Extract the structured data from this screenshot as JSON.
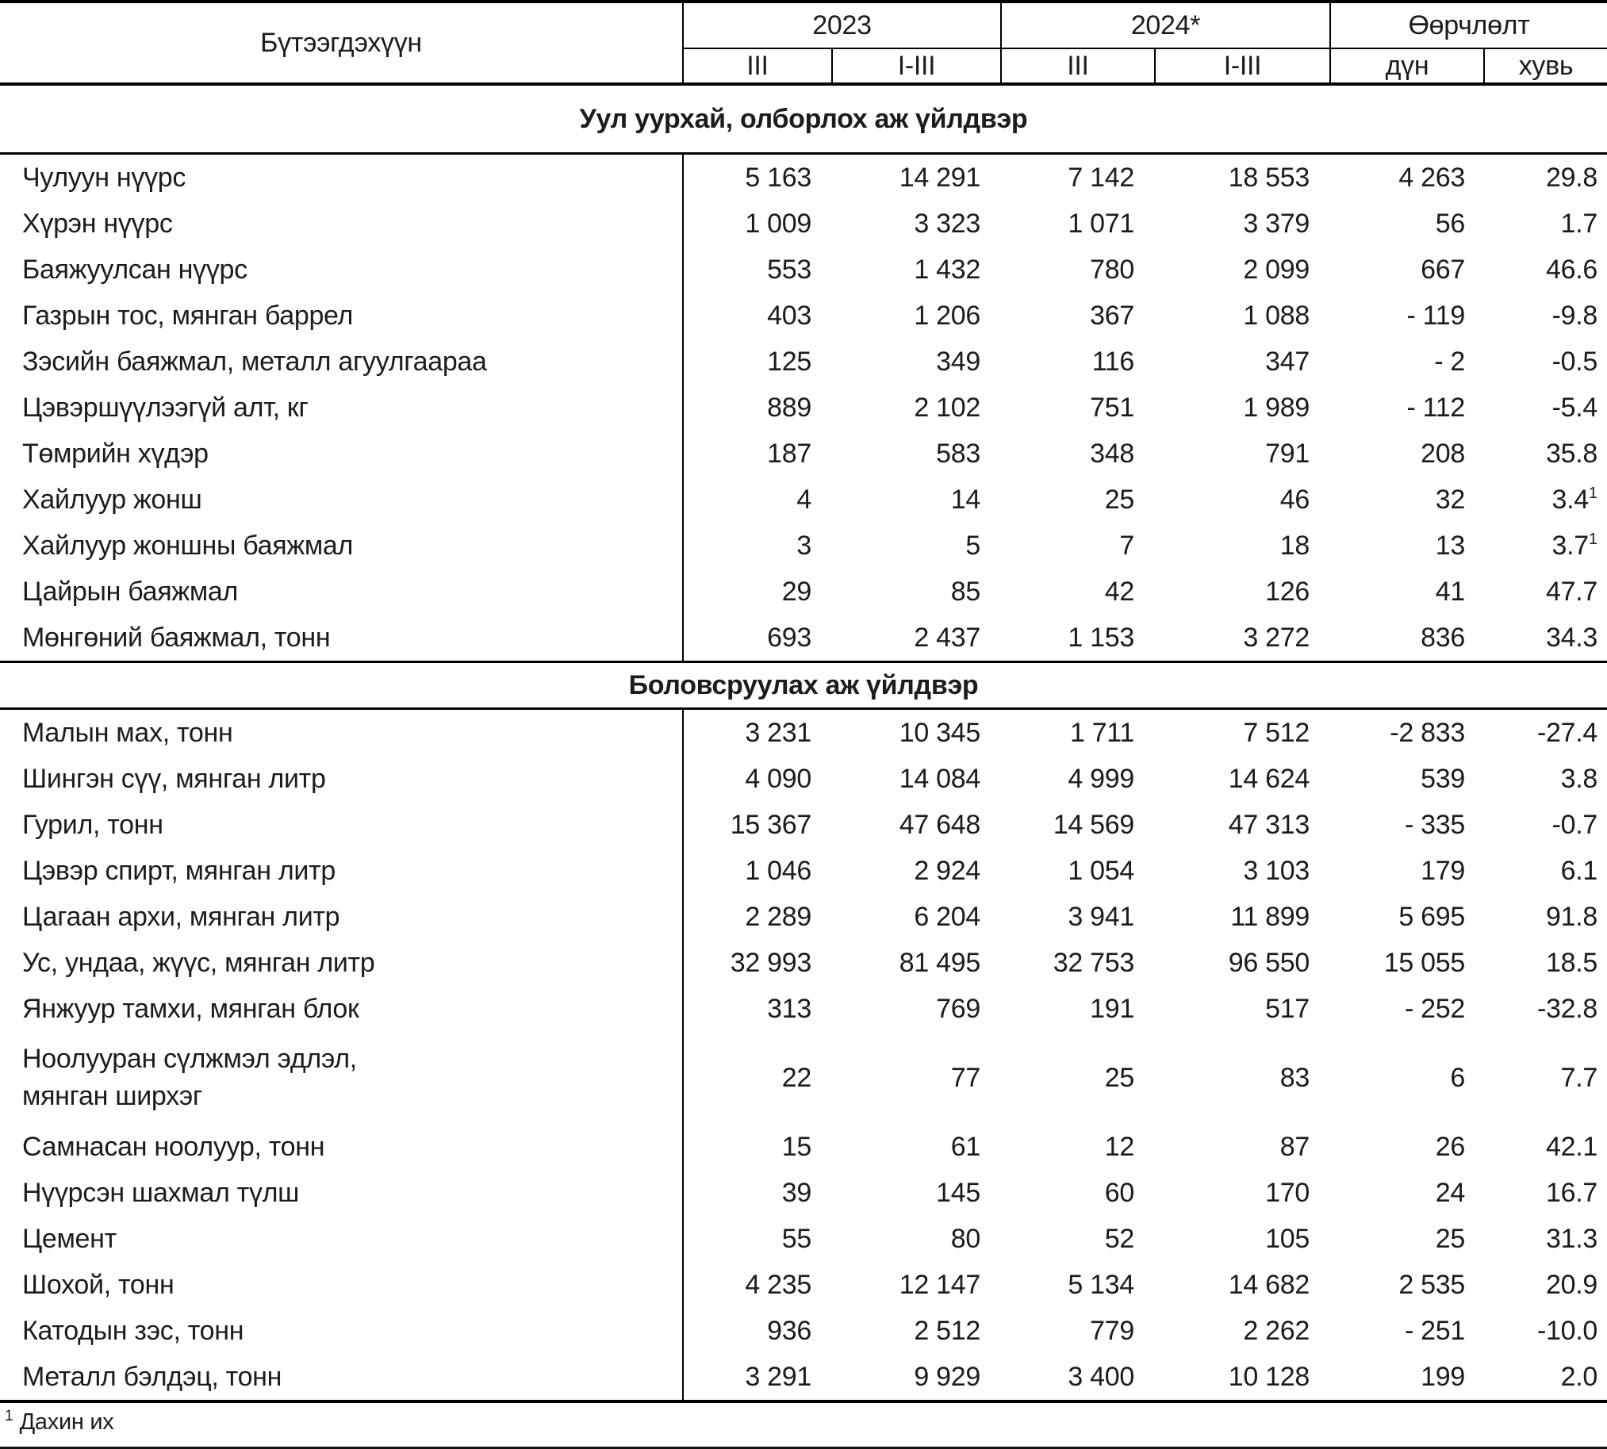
{
  "table": {
    "product_header": "Бүтээгдэхүүн",
    "col_groups": [
      {
        "label": "2023",
        "sub": [
          "III",
          "I-III"
        ]
      },
      {
        "label": "2024*",
        "sub": [
          "III",
          "I-III"
        ]
      },
      {
        "label": "Өөрчлөлт",
        "sub": [
          "дүн",
          "хувь"
        ]
      }
    ],
    "sections": [
      {
        "title": "Уул уурхай, олборлох аж үйлдвэр",
        "rows": [
          {
            "label": "Чулуун нүүрс",
            "values": [
              "5 163",
              "14 291",
              "7 142",
              "18 553",
              "4 263",
              "29.8"
            ]
          },
          {
            "label": "Хүрэн нүүрс",
            "values": [
              "1 009",
              "3 323",
              "1 071",
              "3 379",
              "56",
              "1.7"
            ]
          },
          {
            "label": "Баяжуулсан нүүрс",
            "values": [
              "553",
              "1 432",
              "780",
              "2 099",
              "667",
              "46.6"
            ]
          },
          {
            "label": "Газрын тос, мянган баррел",
            "values": [
              "403",
              "1 206",
              "367",
              "1 088",
              "- 119",
              "-9.8"
            ]
          },
          {
            "label": "Зэсийн баяжмал, металл агуулгаараа",
            "values": [
              "125",
              "349",
              "116",
              "347",
              "- 2",
              "-0.5"
            ]
          },
          {
            "label": "Цэвэршүүлээгүй алт, кг",
            "values": [
              "889",
              "2 102",
              "751",
              "1 989",
              "- 112",
              "-5.4"
            ]
          },
          {
            "label": "Төмрийн хүдэр",
            "values": [
              "187",
              "583",
              "348",
              "791",
              "208",
              "35.8"
            ]
          },
          {
            "label": "Хайлуур жонш",
            "values": [
              "4",
              "14",
              "25",
              "46",
              "32",
              "3.4"
            ],
            "sup": "1"
          },
          {
            "label": "Хайлуур жоншны баяжмал",
            "values": [
              "3",
              "5",
              "7",
              "18",
              "13",
              "3.7"
            ],
            "sup": "1"
          },
          {
            "label": "Цайрын баяжмал",
            "values": [
              "29",
              "85",
              "42",
              "126",
              "41",
              "47.7"
            ]
          },
          {
            "label": "Мөнгөний баяжмал, тонн",
            "values": [
              "693",
              "2 437",
              "1 153",
              "3 272",
              "836",
              "34.3"
            ]
          }
        ]
      },
      {
        "title": "Боловсруулах аж үйлдвэр",
        "rows": [
          {
            "label": "Малын мах, тонн",
            "values": [
              "3 231",
              "10 345",
              "1 711",
              "7 512",
              "-2 833",
              "-27.4"
            ]
          },
          {
            "label": "Шингэн сүү, мянган литр",
            "values": [
              "4 090",
              "14 084",
              "4 999",
              "14 624",
              "539",
              "3.8"
            ]
          },
          {
            "label": "Гурил, тонн",
            "values": [
              "15 367",
              "47 648",
              "14 569",
              "47 313",
              "- 335",
              "-0.7"
            ]
          },
          {
            "label": "Цэвэр спирт, мянган литр",
            "values": [
              "1 046",
              "2 924",
              "1 054",
              "3 103",
              "179",
              "6.1"
            ]
          },
          {
            "label": "Цагаан архи, мянган литр",
            "values": [
              "2 289",
              "6 204",
              "3 941",
              "11 899",
              "5 695",
              "91.8"
            ]
          },
          {
            "label": "Ус, ундаа, жүүс, мянган литр",
            "values": [
              "32 993",
              "81 495",
              "32 753",
              "96 550",
              "15 055",
              "18.5"
            ]
          },
          {
            "label": "Янжуур тамхи, мянган блок",
            "values": [
              "313",
              "769",
              "191",
              "517",
              "- 252",
              "-32.8"
            ]
          },
          {
            "label": "Ноолууран сүлжмэл эдлэл,\nмянган ширхэг",
            "values": [
              "22",
              "77",
              "25",
              "83",
              "6",
              "7.7"
            ]
          },
          {
            "label": "Самнасан ноолуур, тонн",
            "values": [
              "15",
              "61",
              "12",
              "87",
              "26",
              "42.1"
            ]
          },
          {
            "label": "Нүүрсэн шахмал түлш",
            "values": [
              "39",
              "145",
              "60",
              "170",
              "24",
              "16.7"
            ]
          },
          {
            "label": "Цемент",
            "values": [
              "55",
              "80",
              "52",
              "105",
              "25",
              "31.3"
            ]
          },
          {
            "label": "Шохой, тонн",
            "values": [
              "4 235",
              "12 147",
              "5 134",
              "14 682",
              "2 535",
              "20.9"
            ]
          },
          {
            "label": "Катодын зэс, тонн",
            "values": [
              "936",
              "2 512",
              "779",
              "2 262",
              "- 251",
              "-10.0"
            ]
          },
          {
            "label": "Металл бэлдэц, тонн",
            "values": [
              "3 291",
              "9 929",
              "3 400",
              "10 128",
              "199",
              "2.0"
            ]
          }
        ]
      }
    ]
  },
  "footnote": {
    "marker": "1",
    "text": "Дахин их"
  }
}
